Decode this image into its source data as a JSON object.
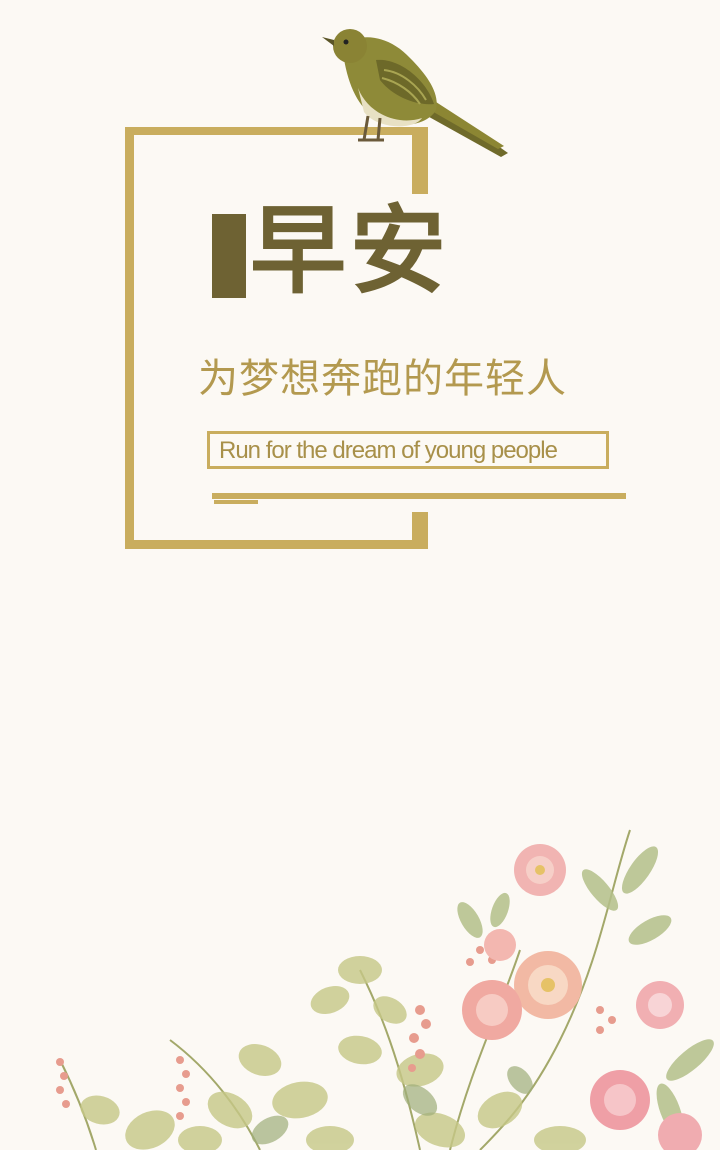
{
  "card": {
    "title": "早安",
    "subtitle": "为梦想奔跑的年轻人",
    "subtitle_en": "Run for the dream of young people"
  },
  "colors": {
    "background": "#fcf9f4",
    "frame_gold": "#c9ad5e",
    "title_olive": "#6e6233",
    "subtitle_gold": "#b3994f"
  },
  "icons": {
    "bird": "bird-illustration",
    "flowers": "floral-decoration"
  }
}
